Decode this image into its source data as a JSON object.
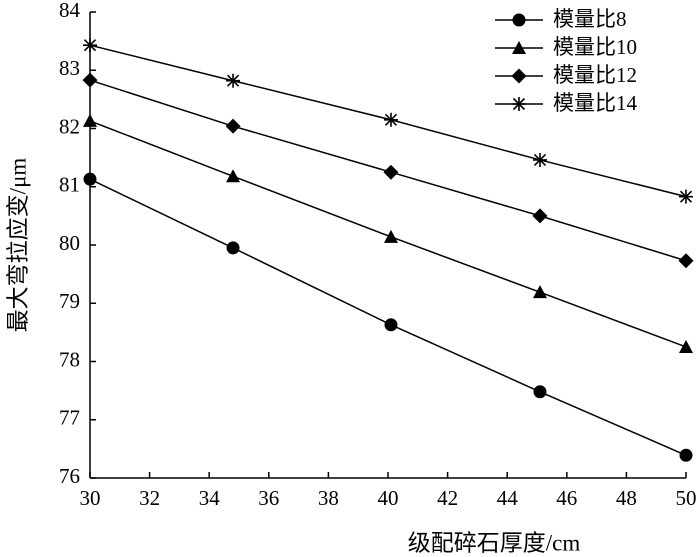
{
  "chart_data": {
    "type": "line",
    "x_label": "级配碎石厚度/cm",
    "y_label": "最大弯拉应变/μm",
    "x": [
      30,
      34.8,
      40.1,
      45.1,
      50
    ],
    "series": [
      {
        "name": "模量比8",
        "color": "#000000",
        "marker": "circle",
        "values": [
          81.13,
          79.95,
          78.63,
          77.48,
          76.39
        ]
      },
      {
        "name": "模量比10",
        "color": "#000000",
        "marker": "triangle",
        "values": [
          82.13,
          81.18,
          80.14,
          79.19,
          78.25
        ]
      },
      {
        "name": "模量比12",
        "color": "#000000",
        "marker": "diamond",
        "values": [
          82.83,
          82.04,
          81.25,
          80.5,
          79.73
        ]
      },
      {
        "name": "模量比14",
        "color": "#000000",
        "marker": "star",
        "values": [
          83.43,
          82.82,
          82.15,
          81.46,
          80.83
        ]
      }
    ],
    "xlim": [
      30,
      50
    ],
    "xticks": [
      30,
      32,
      34,
      36,
      38,
      40,
      42,
      44,
      46,
      48,
      50
    ],
    "ylim": [
      76,
      84
    ],
    "yticks": [
      76,
      77,
      78,
      79,
      80,
      81,
      82,
      83,
      84
    ],
    "grid": false,
    "legend": "upper right"
  }
}
